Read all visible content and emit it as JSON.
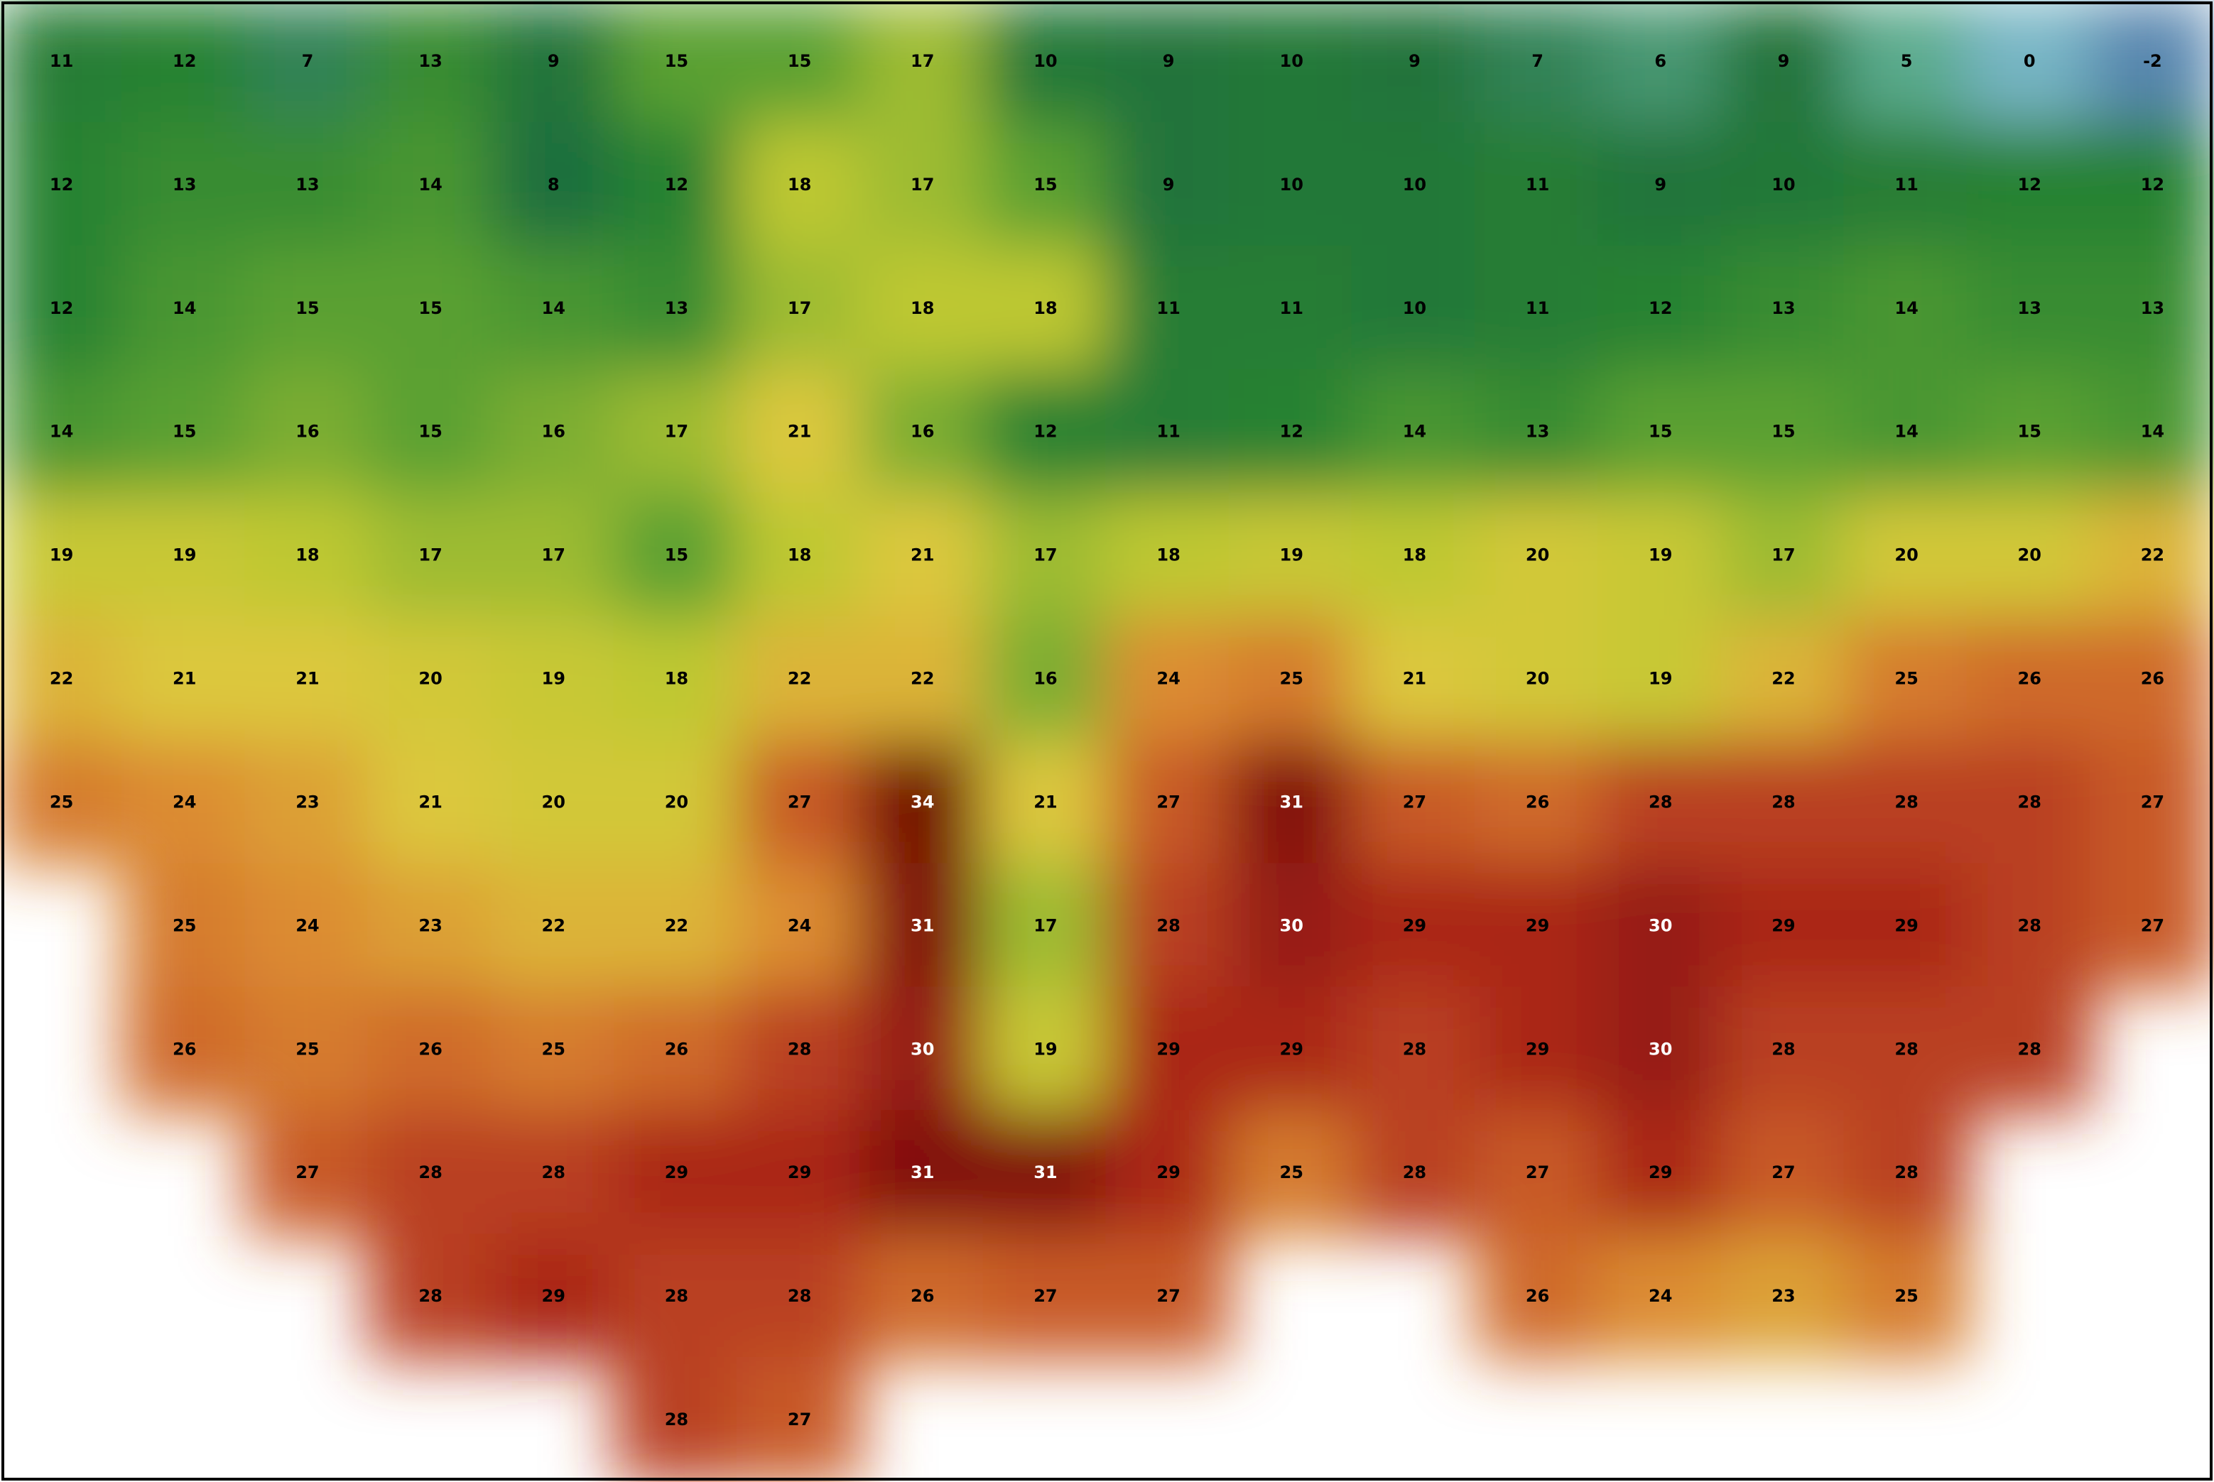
{
  "map": {
    "grid": [
      [
        11,
        12,
        7,
        13,
        9,
        15,
        15,
        17,
        10,
        9,
        10,
        9,
        7,
        6,
        9,
        5,
        0,
        -2
      ],
      [
        12,
        13,
        13,
        14,
        8,
        12,
        18,
        17,
        15,
        9,
        10,
        10,
        11,
        9,
        10,
        11,
        12,
        12
      ],
      [
        12,
        14,
        15,
        15,
        14,
        13,
        17,
        18,
        18,
        11,
        11,
        10,
        11,
        12,
        13,
        14,
        13,
        13
      ],
      [
        14,
        15,
        16,
        15,
        16,
        17,
        21,
        16,
        12,
        11,
        12,
        14,
        13,
        15,
        15,
        14,
        15,
        14
      ],
      [
        19,
        19,
        18,
        17,
        17,
        15,
        18,
        21,
        17,
        18,
        19,
        18,
        20,
        19,
        17,
        20,
        20,
        22
      ],
      [
        22,
        21,
        21,
        20,
        19,
        18,
        22,
        22,
        16,
        24,
        25,
        21,
        20,
        19,
        22,
        25,
        26,
        26
      ],
      [
        25,
        24,
        23,
        21,
        20,
        20,
        27,
        34,
        21,
        27,
        31,
        27,
        26,
        28,
        28,
        28,
        28,
        27
      ],
      [
        null,
        25,
        24,
        23,
        22,
        22,
        24,
        31,
        17,
        28,
        30,
        29,
        29,
        30,
        29,
        29,
        28,
        27
      ],
      [
        null,
        26,
        25,
        26,
        25,
        26,
        28,
        30,
        19,
        29,
        29,
        28,
        29,
        30,
        28,
        28,
        28,
        null
      ],
      [
        null,
        null,
        27,
        28,
        28,
        29,
        29,
        31,
        31,
        29,
        25,
        28,
        27,
        29,
        27,
        28,
        null,
        null
      ],
      [
        null,
        null,
        null,
        28,
        29,
        28,
        28,
        26,
        27,
        27,
        null,
        null,
        26,
        24,
        23,
        25,
        null,
        null
      ],
      [
        null,
        null,
        null,
        null,
        null,
        28,
        27,
        null,
        null,
        null,
        null,
        null,
        null,
        null,
        null,
        null,
        null,
        null
      ]
    ]
  }
}
